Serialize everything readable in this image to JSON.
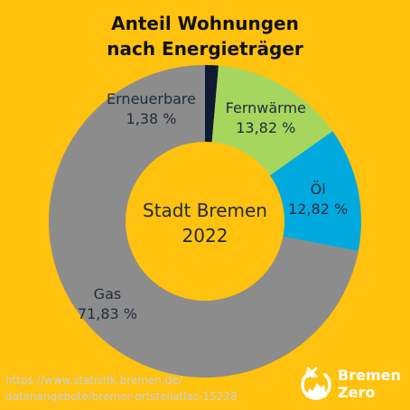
{
  "chart_data": {
    "type": "pie",
    "variant": "donut",
    "title_line1": "Anteil Wohnungen",
    "title_line2": "nach Energieträger",
    "center_line1": "Stadt Bremen",
    "center_line2": "2022",
    "slices": [
      {
        "name": "Erneuerbare",
        "value": 1.38,
        "label": "1,38 %",
        "color": "#0F1B33"
      },
      {
        "name": "Fernwärme",
        "value": 13.82,
        "label": "13,82 %",
        "color": "#A7D65F"
      },
      {
        "name": "Öl",
        "value": 12.82,
        "label": "12,82 %",
        "color": "#00A9DE"
      },
      {
        "name": "Gas",
        "value": 71.83,
        "label": "71,83 %",
        "color": "#8C8C8C"
      }
    ]
  },
  "source": {
    "line1": "https://www.statistik.bremen.de/",
    "line2": "datenangebote/bremer-ortsteilatlas-15228"
  },
  "logo": {
    "line1": "Bremen",
    "line2": "Zero"
  },
  "colors": {
    "background": "#FFC20E",
    "text": "#1F2A3A"
  }
}
